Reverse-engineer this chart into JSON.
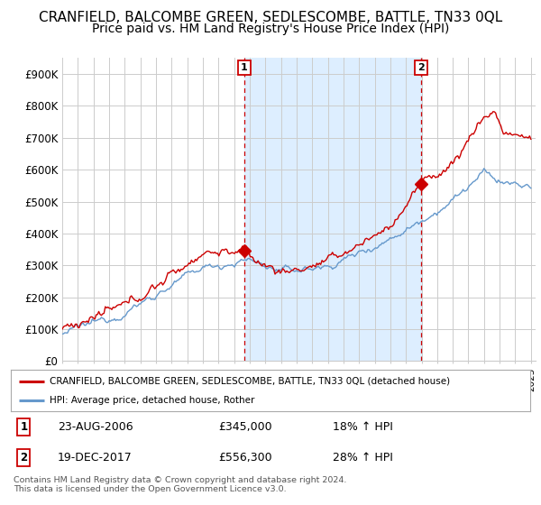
{
  "title": "CRANFIELD, BALCOMBE GREEN, SEDLESCOMBE, BATTLE, TN33 0QL",
  "subtitle": "Price paid vs. HM Land Registry's House Price Index (HPI)",
  "ylabel_ticks": [
    "£0",
    "£100K",
    "£200K",
    "£300K",
    "£400K",
    "£500K",
    "£600K",
    "£700K",
    "£800K",
    "£900K"
  ],
  "ytick_values": [
    0,
    100000,
    200000,
    300000,
    400000,
    500000,
    600000,
    700000,
    800000,
    900000
  ],
  "ylim": [
    0,
    950000
  ],
  "xlim_start": 1995.0,
  "xlim_end": 2025.3,
  "marker1_x": 2006.65,
  "marker1_y": 345000,
  "marker1_label": "1",
  "marker2_x": 2017.97,
  "marker2_y": 556300,
  "marker2_label": "2",
  "vline1_x": 2006.65,
  "vline2_x": 2017.97,
  "line1_color": "#cc0000",
  "line2_color": "#6699cc",
  "shade_color": "#ddeeff",
  "legend_label1": "CRANFIELD, BALCOMBE GREEN, SEDLESCOMBE, BATTLE, TN33 0QL (detached house)",
  "legend_label2": "HPI: Average price, detached house, Rother",
  "annotation1_date": "23-AUG-2006",
  "annotation1_price": "£345,000",
  "annotation1_hpi": "18% ↑ HPI",
  "annotation2_date": "19-DEC-2017",
  "annotation2_price": "£556,300",
  "annotation2_hpi": "28% ↑ HPI",
  "footer": "Contains HM Land Registry data © Crown copyright and database right 2024.\nThis data is licensed under the Open Government Licence v3.0.",
  "bg_color": "#ffffff",
  "grid_color": "#cccccc",
  "title_fontsize": 11,
  "subtitle_fontsize": 10
}
